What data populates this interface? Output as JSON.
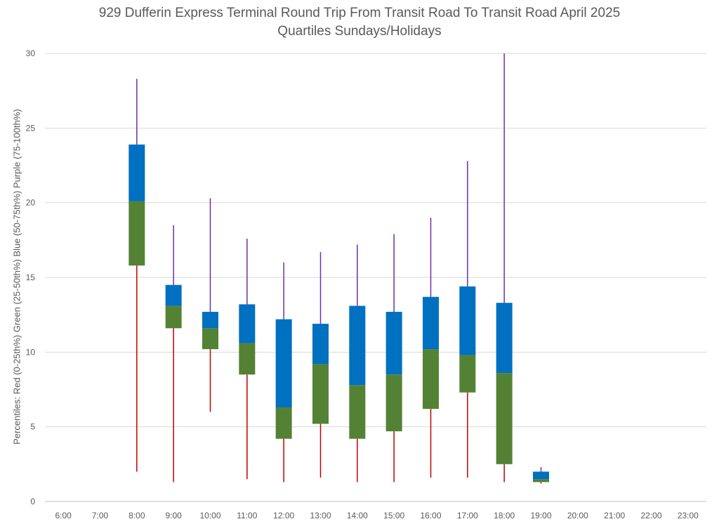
{
  "chart_data": {
    "type": "box",
    "title": "929 Dufferin Express Terminal Round Trip From Transit Road To Transit Road April 2025",
    "subtitle": "Quartiles Sundays/Holidays",
    "ylabel": "Percentiles:  Red (0-25th%)  Green (25-50th%)  Blue (50-75th%)  Purple (75-100th%)",
    "xlabel": "",
    "ylim": [
      0,
      30
    ],
    "yticks": [
      0,
      5,
      10,
      15,
      20,
      25,
      30
    ],
    "categories": [
      "6:00",
      "7:00",
      "8:00",
      "9:00",
      "10:00",
      "11:00",
      "12:00",
      "13:00",
      "14:00",
      "15:00",
      "16:00",
      "17:00",
      "18:00",
      "19:00",
      "20:00",
      "21:00",
      "22:00",
      "23:00"
    ],
    "series": [
      {
        "name": "Red (0-25th%)",
        "color": "#C00000"
      },
      {
        "name": "Green (25-50th%)",
        "color": "#548235"
      },
      {
        "name": "Blue (50-75th%)",
        "color": "#0070C0"
      },
      {
        "name": "Purple (75-100th%)",
        "color": "#7030A0"
      }
    ],
    "boxes": [
      {
        "category": "8:00",
        "min": 2.0,
        "q1": 15.8,
        "median": 20.1,
        "q3": 23.9,
        "max": 28.3
      },
      {
        "category": "9:00",
        "min": 1.3,
        "q1": 11.6,
        "median": 13.1,
        "q3": 14.5,
        "max": 18.5
      },
      {
        "category": "10:00",
        "min": 6.0,
        "q1": 10.2,
        "median": 11.6,
        "q3": 12.7,
        "max": 20.3
      },
      {
        "category": "11:00",
        "min": 1.5,
        "q1": 8.5,
        "median": 10.6,
        "q3": 13.2,
        "max": 17.6
      },
      {
        "category": "12:00",
        "min": 1.3,
        "q1": 4.2,
        "median": 6.3,
        "q3": 12.2,
        "max": 16.0
      },
      {
        "category": "13:00",
        "min": 1.6,
        "q1": 5.2,
        "median": 9.2,
        "q3": 11.9,
        "max": 16.7
      },
      {
        "category": "14:00",
        "min": 1.3,
        "q1": 4.2,
        "median": 7.8,
        "q3": 13.1,
        "max": 17.2
      },
      {
        "category": "15:00",
        "min": 1.3,
        "q1": 4.7,
        "median": 8.5,
        "q3": 12.7,
        "max": 17.9
      },
      {
        "category": "16:00",
        "min": 1.6,
        "q1": 6.2,
        "median": 10.2,
        "q3": 13.7,
        "max": 19.0
      },
      {
        "category": "17:00",
        "min": 1.6,
        "q1": 7.3,
        "median": 9.8,
        "q3": 14.4,
        "max": 22.8
      },
      {
        "category": "18:00",
        "min": 1.3,
        "q1": 2.5,
        "median": 8.6,
        "q3": 13.3,
        "max": 30.0
      },
      {
        "category": "19:00",
        "min": 1.2,
        "q1": 1.3,
        "median": 1.5,
        "q3": 2.0,
        "max": 2.3
      }
    ],
    "grid": true,
    "legend": "none"
  }
}
